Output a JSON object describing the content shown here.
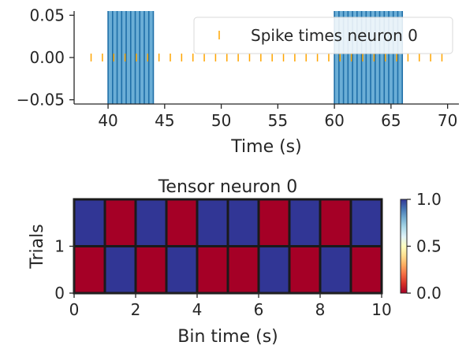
{
  "chart_data": [
    {
      "type": "scatter",
      "xlabel": "Time (s)",
      "ylabel": "",
      "title": "",
      "xlim": [
        37,
        71
      ],
      "ylim": [
        -0.055,
        0.055
      ],
      "xticks": [
        40,
        45,
        50,
        55,
        60,
        65,
        70
      ],
      "yticks": [
        "−0.05",
        "0.00",
        "0.05"
      ],
      "ytick_values": [
        -0.05,
        0.0,
        0.05
      ],
      "spike_series": {
        "name": "Spike times neuron 0",
        "color": "#ffa500",
        "x": [
          38.5,
          39.5,
          40.5,
          41.5,
          42.5,
          43.5,
          44.5,
          45.5,
          46.5,
          47.5,
          48.5,
          49.5,
          50.5,
          51.5,
          52.5,
          53.5,
          54.5,
          55.5,
          56.5,
          57.5,
          58.5,
          59.5,
          60.5,
          61.5,
          62.5,
          63.5,
          64.5,
          65.5,
          66.5,
          67.5,
          68.5,
          69.5
        ],
        "y": 0
      },
      "event_blocks": [
        {
          "start": 40,
          "end": 44,
          "color": "#6baed6",
          "edge": "#1f6fa8"
        },
        {
          "start": 60,
          "end": 66,
          "color": "#6baed6",
          "edge": "#1f6fa8"
        }
      ],
      "event_line_spacing": 0.4,
      "legend": "top-right"
    },
    {
      "type": "heatmap",
      "title": "Tensor neuron 0",
      "xlabel": "Bin time (s)",
      "ylabel": "Trials",
      "xlim": [
        0,
        10
      ],
      "ylim": [
        0,
        2
      ],
      "xticks": [
        0,
        2,
        4,
        6,
        8,
        10
      ],
      "yticks": [
        0,
        1
      ],
      "rows": [
        [
          1,
          0,
          1,
          0,
          1,
          1,
          0,
          1,
          0,
          1
        ],
        [
          0,
          1,
          0,
          1,
          0,
          0,
          1,
          0,
          1,
          0
        ]
      ],
      "colormap": "RdYlBu",
      "colorbar": {
        "ticks": [
          "0.0",
          "0.5",
          "1.0"
        ],
        "tick_values": [
          0.0,
          0.5,
          1.0
        ],
        "range": [
          0,
          1
        ]
      }
    }
  ]
}
